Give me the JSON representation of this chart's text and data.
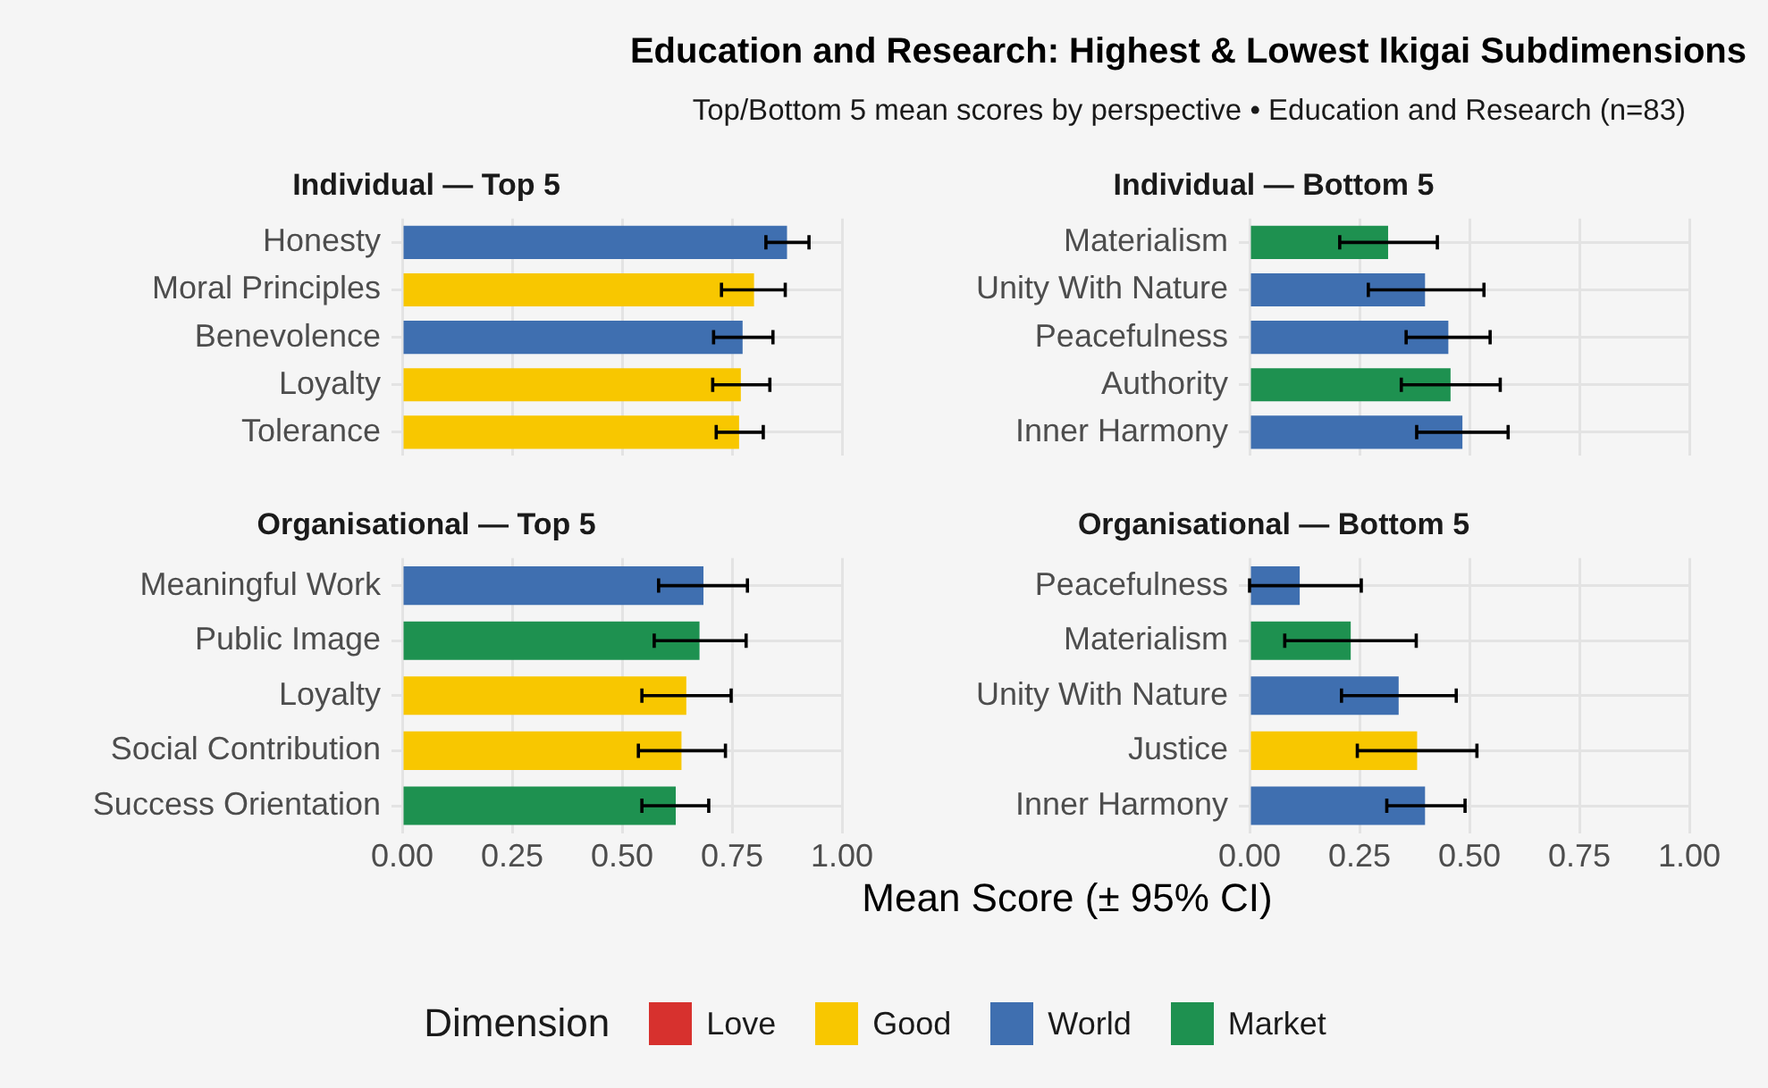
{
  "chart_data": [
    {
      "type": "other",
      "title": "Education and Research: Highest & Lowest Ikigai Subdimensions",
      "subtitle": "Top/Bottom 5 mean scores by perspective • Education and Research (n=83)"
    },
    {
      "type": "bar",
      "orientation": "horizontal",
      "stacked": true,
      "title": "Individual — Top 5",
      "categories": [
        "Honesty",
        "Moral Principles",
        "Benevolence",
        "Loyalty",
        "Tolerance"
      ],
      "xlim": [
        0,
        1
      ],
      "xticks": [
        {
          "value": 0,
          "label": null
        },
        {
          "value": 0.25,
          "label": null
        },
        {
          "value": 0.5,
          "label": null
        },
        {
          "value": 0.75,
          "label": null
        },
        {
          "value": 1,
          "label": null
        }
      ],
      "tick_labels": "y",
      "grid": true,
      "legend": "bottom",
      "legend_title": "Dimension",
      "series": [
        {
          "name": "Love",
          "color": "#d7312e",
          "values": [
            null,
            null,
            null,
            null,
            null
          ],
          "errors": [
            null,
            null,
            null,
            null,
            null
          ]
        },
        {
          "name": "Good",
          "color": "#f8c700",
          "values": [
            null,
            0.8,
            null,
            0.77,
            0.766
          ],
          "errors": [
            null,
            [
              0.726,
              0.871
            ],
            null,
            [
              0.706,
              0.836
            ],
            [
              0.714,
              0.821
            ]
          ]
        },
        {
          "name": "World",
          "color": "#3f6fb0",
          "values": [
            0.875,
            null,
            0.774,
            null,
            null
          ],
          "errors": [
            [
              0.827,
              0.925
            ],
            null,
            [
              0.708,
              0.843
            ],
            null,
            null
          ]
        },
        {
          "name": "Market",
          "color": "#1e9150",
          "values": [
            null,
            null,
            null,
            null,
            null
          ],
          "errors": [
            null,
            null,
            null,
            null,
            null
          ]
        }
      ]
    },
    {
      "type": "bar",
      "orientation": "horizontal",
      "stacked": true,
      "title": "Individual — Bottom 5",
      "categories": [
        "Materialism",
        "Unity With Nature",
        "Peacefulness",
        "Authority",
        "Inner Harmony"
      ],
      "xlim": [
        0,
        1
      ],
      "xticks": [
        {
          "value": 0,
          "label": null
        },
        {
          "value": 0.25,
          "label": null
        },
        {
          "value": 0.5,
          "label": null
        },
        {
          "value": 0.75,
          "label": null
        },
        {
          "value": 1,
          "label": null
        }
      ],
      "tick_labels": "y",
      "grid": true,
      "series": [
        {
          "color": "#3f6fb0",
          "values": [
            null,
            0.399,
            0.452,
            null,
            0.484
          ],
          "errors": [
            null,
            [
              0.27,
              0.533
            ],
            [
              0.356,
              0.547
            ],
            null,
            [
              0.38,
              0.588
            ]
          ]
        },
        {
          "color": "#1e9150",
          "values": [
            0.315,
            null,
            null,
            0.457,
            null
          ],
          "errors": [
            [
              0.205,
              0.427
            ],
            null,
            null,
            [
              0.345,
              0.57
            ],
            null
          ]
        }
      ]
    },
    {
      "type": "bar",
      "orientation": "horizontal",
      "stacked": true,
      "title": "Organisational — Top 5",
      "categories": [
        "Meaningful Work",
        "Public Image",
        "Loyalty",
        "Social Contribution",
        "Success Orientation"
      ],
      "xlim": [
        0,
        1
      ],
      "xticks": [
        {
          "value": 0,
          "label": "0.00"
        },
        {
          "value": 0.25,
          "label": "0.25"
        },
        {
          "value": 0.5,
          "label": "0.50"
        },
        {
          "value": 0.75,
          "label": "0.75"
        },
        {
          "value": 1,
          "label": "1.00"
        }
      ],
      "grid": true,
      "xlabel": "Mean Score (± 95% CI)",
      "series": [
        {
          "color": "#f8c700",
          "values": [
            null,
            null,
            0.646,
            0.635,
            null
          ],
          "errors": [
            null,
            null,
            [
              0.545,
              0.748
            ],
            [
              0.537,
              0.735
            ],
            null
          ]
        },
        {
          "color": "#3f6fb0",
          "values": [
            0.685,
            null,
            null,
            null,
            null
          ],
          "errors": [
            [
              0.583,
              0.785
            ],
            null,
            null,
            null,
            null
          ]
        },
        {
          "color": "#1e9150",
          "values": [
            null,
            0.676,
            null,
            null,
            0.622
          ],
          "errors": [
            null,
            [
              0.573,
              0.782
            ],
            null,
            null,
            [
              0.545,
              0.697
            ]
          ]
        }
      ]
    },
    {
      "type": "bar",
      "orientation": "horizontal",
      "stacked": true,
      "title": "Organisational — Bottom 5",
      "categories": [
        "Peacefulness",
        "Materialism",
        "Unity With Nature",
        "Justice",
        "Inner Harmony"
      ],
      "xlim": [
        0,
        1
      ],
      "xticks": [
        {
          "value": 0,
          "label": "0.00"
        },
        {
          "value": 0.25,
          "label": "0.25"
        },
        {
          "value": 0.5,
          "label": "0.50"
        },
        {
          "value": 0.75,
          "label": "0.75"
        },
        {
          "value": 1,
          "label": "1.00"
        }
      ],
      "grid": true,
      "series": [
        {
          "color": "#f8c700",
          "values": [
            null,
            null,
            null,
            0.381,
            null
          ],
          "errors": [
            null,
            null,
            null,
            [
              0.245,
              0.517
            ],
            null
          ]
        },
        {
          "color": "#3f6fb0",
          "values": [
            0.114,
            null,
            0.339,
            null,
            0.399
          ],
          "errors": [
            [
              0.0,
              0.254
            ],
            null,
            [
              0.209,
              0.47
            ],
            null,
            [
              0.312,
              0.49
            ]
          ]
        },
        {
          "color": "#1e9150",
          "values": [
            null,
            0.23,
            null,
            null,
            null
          ],
          "errors": [
            null,
            [
              0.08,
              0.379
            ],
            null,
            null,
            null
          ]
        }
      ]
    }
  ]
}
